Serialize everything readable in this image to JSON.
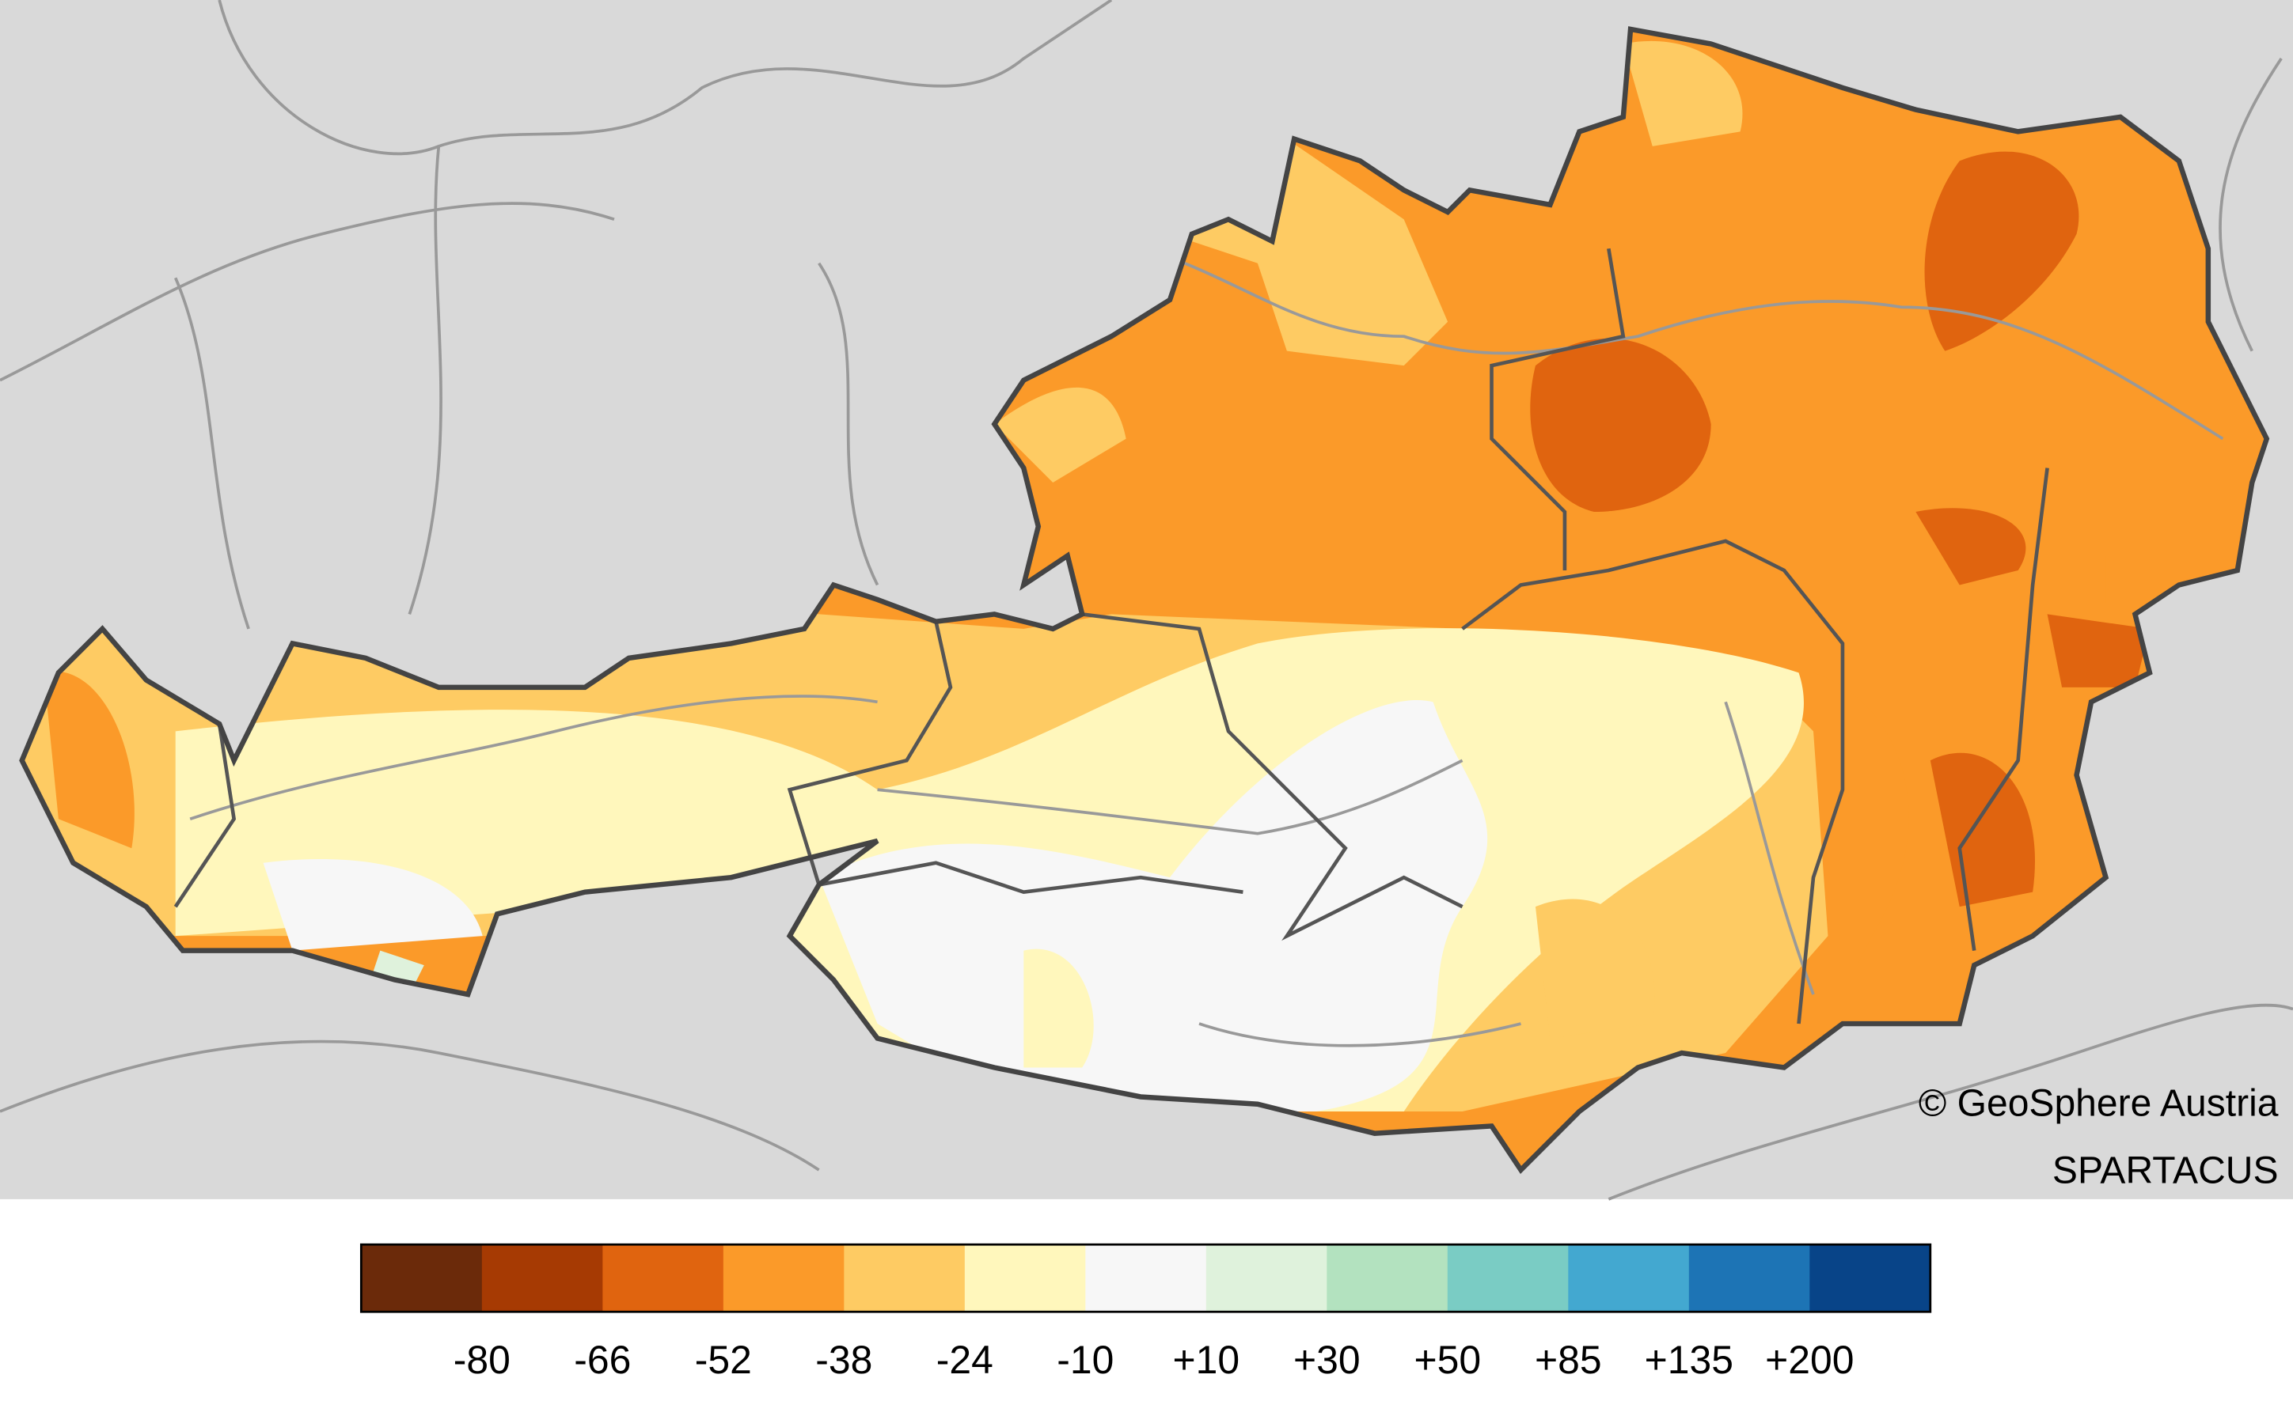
{
  "credit": {
    "copyright": "© GeoSphere Austria",
    "dataset": "SPARTACUS"
  },
  "legend": {
    "colors": [
      "#6b2a0a",
      "#a63a03",
      "#e0640f",
      "#fb9a29",
      "#fecb63",
      "#fff7bc",
      "#f7f7f7",
      "#dff2dc",
      "#b3e2bf",
      "#7accc4",
      "#43a8d0",
      "#1d74b5",
      "#084488"
    ],
    "labels": [
      "-80",
      "-66",
      "-52",
      "-38",
      "-24",
      "-10",
      "+10",
      "+30",
      "+50",
      "+85",
      "+135",
      "+200"
    ]
  }
}
